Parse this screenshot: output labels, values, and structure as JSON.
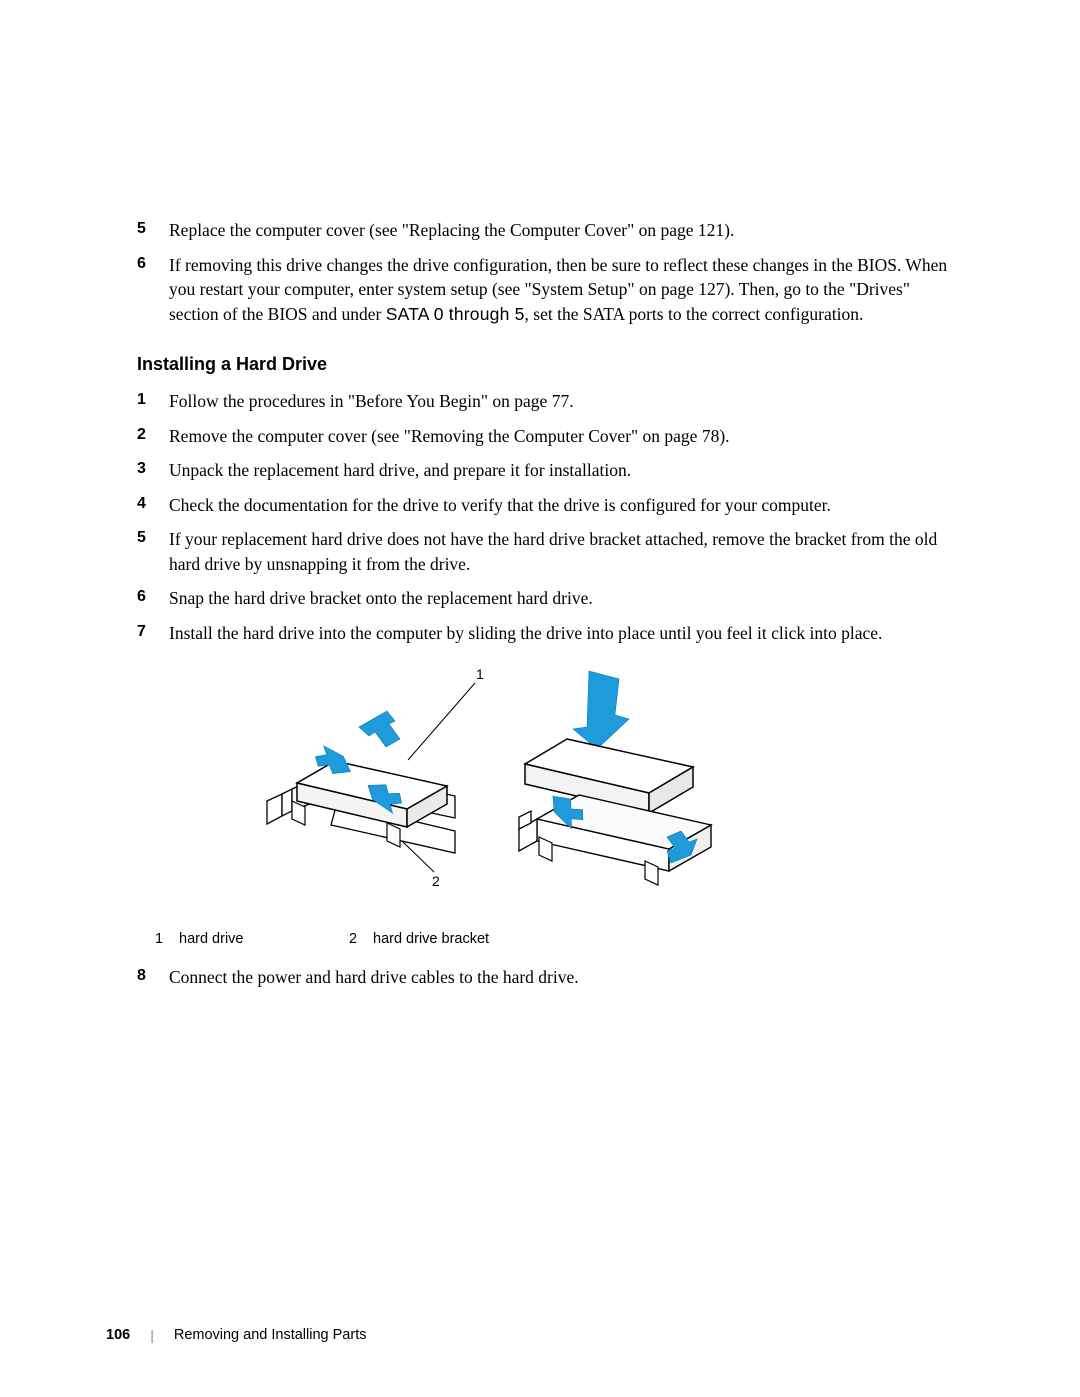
{
  "list1": {
    "items": [
      {
        "n": "5",
        "text": "Replace the computer cover (see \"Replacing the Computer Cover\" on page 121)."
      },
      {
        "n": "6",
        "text_before": "If removing this drive changes the drive configuration, then be sure to reflect these changes in the BIOS. When you restart your computer, enter system setup (see \"System Setup\" on page 127). Then, go to the \"Drives\" section of the BIOS and under ",
        "setting": "SATA 0 through 5",
        "text_after": ", set the SATA ports to the correct configuration."
      }
    ]
  },
  "heading": "Installing a Hard Drive",
  "list2": {
    "items": [
      {
        "n": "1",
        "text": "Follow the procedures in \"Before You Begin\" on page 77."
      },
      {
        "n": "2",
        "text": "Remove the computer cover (see \"Removing the Computer Cover\" on page 78)."
      },
      {
        "n": "3",
        "text": "Unpack the replacement hard drive, and prepare it for installation."
      },
      {
        "n": "4",
        "text": "Check the documentation for the drive to verify that the drive is configured for your computer."
      },
      {
        "n": "5",
        "text": "If your replacement hard drive does not have the hard drive bracket attached, remove the bracket from the old hard drive by unsnapping it from the drive."
      },
      {
        "n": "6",
        "text": "Snap the hard drive bracket onto the replacement hard drive."
      },
      {
        "n": "7",
        "text": "Install the hard drive into the computer by sliding the drive into place until you feel it click into place."
      }
    ]
  },
  "figure": {
    "callouts": {
      "c1": "1",
      "c2": "2"
    },
    "arrow_color": "#1f9bdb",
    "line_color": "#000000",
    "fill_light": "#f9f9f9",
    "fill_white": "#ffffff"
  },
  "legend": {
    "items": [
      {
        "n": "1",
        "label": "hard drive"
      },
      {
        "n": "2",
        "label": "hard drive bracket"
      }
    ]
  },
  "list3": {
    "items": [
      {
        "n": "8",
        "text": "Connect the power and hard drive cables to the hard drive."
      }
    ]
  },
  "footer": {
    "page": "106",
    "chapter": "Removing and Installing Parts"
  }
}
